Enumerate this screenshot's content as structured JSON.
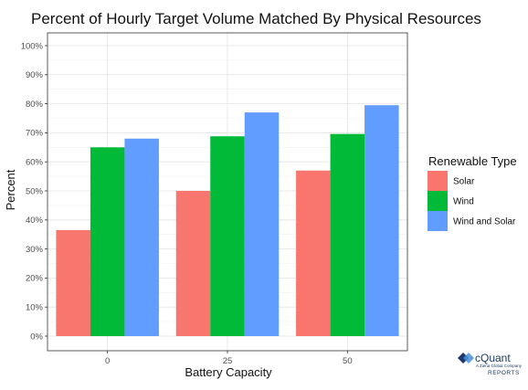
{
  "chart_data": {
    "type": "bar",
    "title": "Percent of Hourly Target Volume Matched By Physical Resources",
    "xlabel": "Battery Capacity",
    "ylabel": "Percent",
    "categories": [
      "0",
      "25",
      "50"
    ],
    "ylim": [
      0,
      100
    ],
    "yticks": [
      0,
      10,
      20,
      30,
      40,
      50,
      60,
      70,
      80,
      90,
      100
    ],
    "ytick_labels": [
      "0%",
      "10%",
      "20%",
      "30%",
      "40%",
      "50%",
      "60%",
      "70%",
      "80%",
      "90%",
      "100%"
    ],
    "grid": true,
    "legend": {
      "title": "Renewable Type",
      "position": "right"
    },
    "series": [
      {
        "name": "Solar",
        "color": "#F8766D",
        "values": [
          36.5,
          50.0,
          57.0
        ]
      },
      {
        "name": "Wind",
        "color": "#00BA38",
        "values": [
          65.0,
          68.8,
          69.6
        ]
      },
      {
        "name": "Wind and Solar",
        "color": "#619CFF",
        "values": [
          68.0,
          77.0,
          79.5
        ]
      }
    ]
  },
  "logo": {
    "name": "cQuant",
    "tagline": "A Ziena Global Company",
    "reports": "REPORTS"
  }
}
